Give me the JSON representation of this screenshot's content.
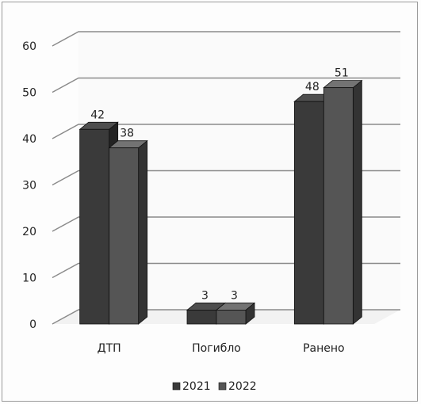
{
  "chart_data": {
    "type": "bar",
    "categories": [
      "ДТП",
      "Погибло",
      "Ранено"
    ],
    "series": [
      {
        "name": "2021",
        "values": [
          42,
          3,
          48
        ],
        "color": "#3a3a3a"
      },
      {
        "name": "2022",
        "values": [
          38,
          3,
          51
        ],
        "color": "#555555"
      }
    ],
    "ylim": [
      0,
      60
    ],
    "y_ticks": [
      "0",
      "10",
      "20",
      "30",
      "40",
      "50",
      "60"
    ],
    "grid": true,
    "legend_position": "bottom",
    "style": "3d-clustered-column"
  }
}
